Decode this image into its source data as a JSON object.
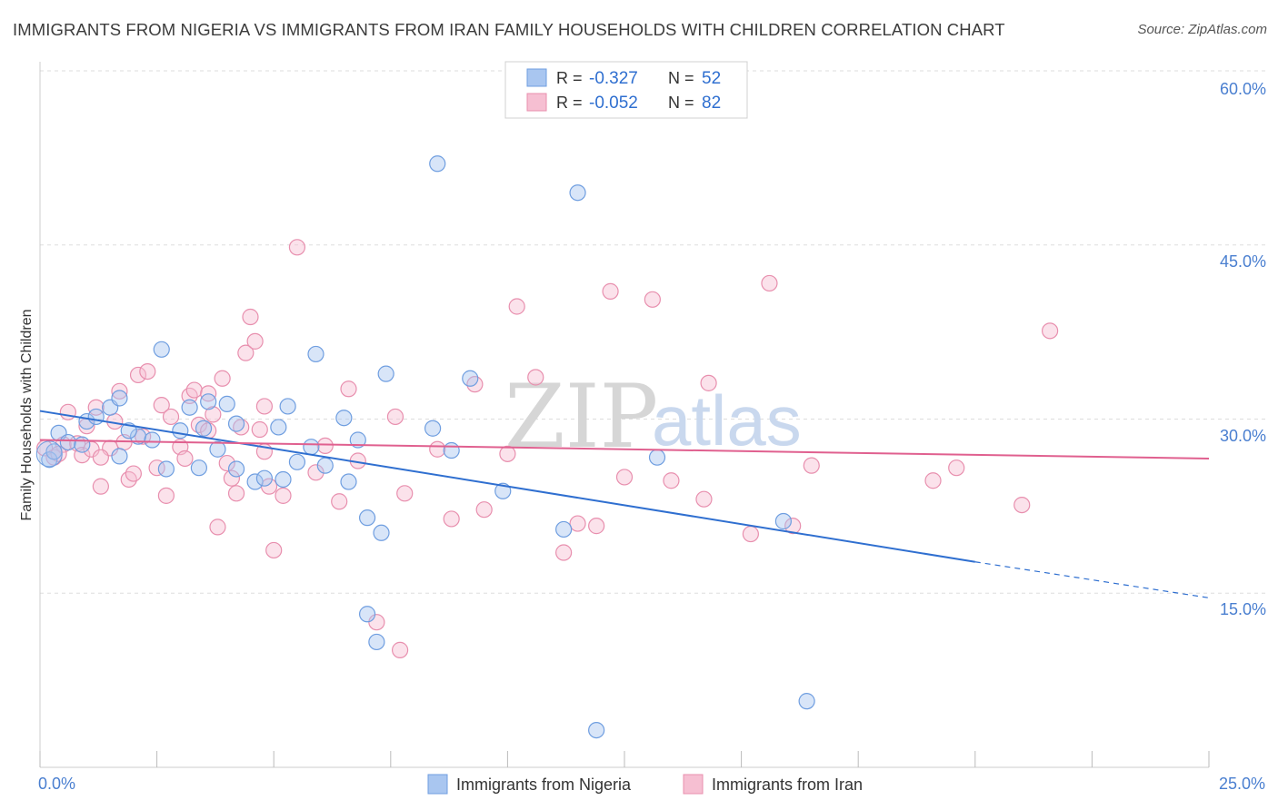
{
  "title": "IMMIGRANTS FROM NIGERIA VS IMMIGRANTS FROM IRAN FAMILY HOUSEHOLDS WITH CHILDREN CORRELATION CHART",
  "source": "Source: ZipAtlas.com",
  "watermark": {
    "zip": "ZIP",
    "atlas": "atlas"
  },
  "colors": {
    "nigeria_fill": "#a9c6f0",
    "nigeria_stroke": "#6f9ee0",
    "nigeria_line": "#2f6fd0",
    "iran_fill": "#f6bfd2",
    "iran_stroke": "#e88fae",
    "iran_line": "#e0608f",
    "axis_label": "#4a7fd0",
    "grid": "#dddddd"
  },
  "legend": {
    "nigeria": {
      "r_label": "R =",
      "r_value": "-0.327",
      "n_label": "N =",
      "n_value": "52"
    },
    "iran": {
      "r_label": "R =",
      "r_value": "-0.052",
      "n_label": "N =",
      "n_value": "82"
    }
  },
  "chart_data": {
    "type": "scatter",
    "title": "IMMIGRANTS FROM NIGERIA VS IMMIGRANTS FROM IRAN FAMILY HOUSEHOLDS WITH CHILDREN CORRELATION CHART",
    "xlabel": "",
    "ylabel": "Family Households with Children",
    "xlim": [
      0,
      25
    ],
    "ylim": [
      0,
      60
    ],
    "x_tick_labels": [
      "0.0%",
      "25.0%"
    ],
    "y_ticks": [
      15,
      30,
      45,
      60
    ],
    "y_tick_labels": [
      "15.0%",
      "30.0%",
      "45.0%",
      "60.0%"
    ],
    "grid": true,
    "legend_position": "top-center",
    "series": [
      {
        "name": "Immigrants from Nigeria",
        "color": "#6f9ee0",
        "r": -0.327,
        "n": 52,
        "trend": {
          "x": [
            0,
            20
          ],
          "y": [
            30.7,
            17.7
          ],
          "dashed_to": [
            25,
            14.6
          ]
        },
        "points": [
          [
            0.2,
            26.5
          ],
          [
            0.4,
            28.8
          ],
          [
            0.6,
            28.0
          ],
          [
            0.9,
            27.8
          ],
          [
            1.0,
            29.8
          ],
          [
            1.2,
            30.2
          ],
          [
            1.5,
            31.0
          ],
          [
            1.7,
            31.8
          ],
          [
            1.7,
            26.8
          ],
          [
            2.1,
            28.5
          ],
          [
            2.4,
            28.2
          ],
          [
            2.6,
            36.0
          ],
          [
            2.7,
            25.7
          ],
          [
            3.0,
            29.0
          ],
          [
            3.2,
            31.0
          ],
          [
            3.4,
            25.8
          ],
          [
            3.5,
            29.2
          ],
          [
            3.6,
            31.5
          ],
          [
            3.8,
            27.4
          ],
          [
            4.0,
            31.3
          ],
          [
            4.2,
            29.6
          ],
          [
            4.2,
            25.7
          ],
          [
            4.6,
            24.6
          ],
          [
            4.8,
            24.9
          ],
          [
            5.1,
            29.3
          ],
          [
            5.2,
            24.8
          ],
          [
            5.3,
            31.1
          ],
          [
            5.8,
            27.6
          ],
          [
            5.9,
            35.6
          ],
          [
            6.1,
            26.0
          ],
          [
            6.6,
            24.6
          ],
          [
            6.5,
            30.1
          ],
          [
            6.8,
            28.2
          ],
          [
            7.0,
            21.5
          ],
          [
            7.3,
            20.2
          ],
          [
            7.4,
            33.9
          ],
          [
            8.4,
            29.2
          ],
          [
            8.5,
            52.0
          ],
          [
            8.8,
            27.3
          ],
          [
            9.2,
            33.5
          ],
          [
            9.9,
            23.8
          ],
          [
            11.2,
            20.5
          ],
          [
            11.5,
            49.5
          ],
          [
            11.9,
            3.2
          ],
          [
            13.2,
            26.7
          ],
          [
            15.9,
            21.2
          ],
          [
            16.4,
            5.7
          ],
          [
            7.0,
            13.2
          ],
          [
            7.2,
            10.8
          ],
          [
            5.5,
            26.3
          ],
          [
            0.3,
            27.2
          ],
          [
            1.9,
            29.0
          ]
        ]
      },
      {
        "name": "Immigrants from Iran",
        "color": "#e88fae",
        "r": -0.052,
        "n": 82,
        "trend": {
          "x": [
            0,
            25
          ],
          "y": [
            28.2,
            26.6
          ]
        },
        "points": [
          [
            0.1,
            27.5
          ],
          [
            0.3,
            26.7
          ],
          [
            0.5,
            27.8
          ],
          [
            0.6,
            30.6
          ],
          [
            0.8,
            27.9
          ],
          [
            0.9,
            26.9
          ],
          [
            1.0,
            29.4
          ],
          [
            1.1,
            27.4
          ],
          [
            1.3,
            24.2
          ],
          [
            1.5,
            27.5
          ],
          [
            1.6,
            29.8
          ],
          [
            1.7,
            32.4
          ],
          [
            1.8,
            28.0
          ],
          [
            1.9,
            24.8
          ],
          [
            2.0,
            25.3
          ],
          [
            2.1,
            33.8
          ],
          [
            2.3,
            34.1
          ],
          [
            2.5,
            25.8
          ],
          [
            2.6,
            31.2
          ],
          [
            2.7,
            23.4
          ],
          [
            2.8,
            30.2
          ],
          [
            3.0,
            27.6
          ],
          [
            3.1,
            26.6
          ],
          [
            3.2,
            32.0
          ],
          [
            3.3,
            32.5
          ],
          [
            3.4,
            29.5
          ],
          [
            3.6,
            32.2
          ],
          [
            3.6,
            29.0
          ],
          [
            3.7,
            30.4
          ],
          [
            3.8,
            20.7
          ],
          [
            3.9,
            33.5
          ],
          [
            4.0,
            26.2
          ],
          [
            4.1,
            24.9
          ],
          [
            4.2,
            23.6
          ],
          [
            4.3,
            29.3
          ],
          [
            4.4,
            35.7
          ],
          [
            4.5,
            38.8
          ],
          [
            4.6,
            36.7
          ],
          [
            4.7,
            29.1
          ],
          [
            4.8,
            27.2
          ],
          [
            4.9,
            24.2
          ],
          [
            5.0,
            18.7
          ],
          [
            5.2,
            23.4
          ],
          [
            5.5,
            44.8
          ],
          [
            5.9,
            25.4
          ],
          [
            6.1,
            27.7
          ],
          [
            6.4,
            22.9
          ],
          [
            6.6,
            32.6
          ],
          [
            7.2,
            12.5
          ],
          [
            7.6,
            30.2
          ],
          [
            7.7,
            10.1
          ],
          [
            7.8,
            23.6
          ],
          [
            8.5,
            27.4
          ],
          [
            8.8,
            21.4
          ],
          [
            9.5,
            22.2
          ],
          [
            10.0,
            27.0
          ],
          [
            10.2,
            39.7
          ],
          [
            10.6,
            33.6
          ],
          [
            11.2,
            18.5
          ],
          [
            11.5,
            21.0
          ],
          [
            12.2,
            41.0
          ],
          [
            12.5,
            25.0
          ],
          [
            13.1,
            40.3
          ],
          [
            13.5,
            24.7
          ],
          [
            14.2,
            23.1
          ],
          [
            15.2,
            20.1
          ],
          [
            15.6,
            41.7
          ],
          [
            16.1,
            20.8
          ],
          [
            19.1,
            24.7
          ],
          [
            19.6,
            25.8
          ],
          [
            21.0,
            22.6
          ],
          [
            21.6,
            37.6
          ],
          [
            1.3,
            26.7
          ],
          [
            2.2,
            28.5
          ],
          [
            0.4,
            27.0
          ],
          [
            6.8,
            26.4
          ],
          [
            9.3,
            33.0
          ],
          [
            11.9,
            20.8
          ],
          [
            14.3,
            33.1
          ],
          [
            1.2,
            31.0
          ],
          [
            16.5,
            26.0
          ],
          [
            4.8,
            31.1
          ]
        ]
      }
    ]
  }
}
